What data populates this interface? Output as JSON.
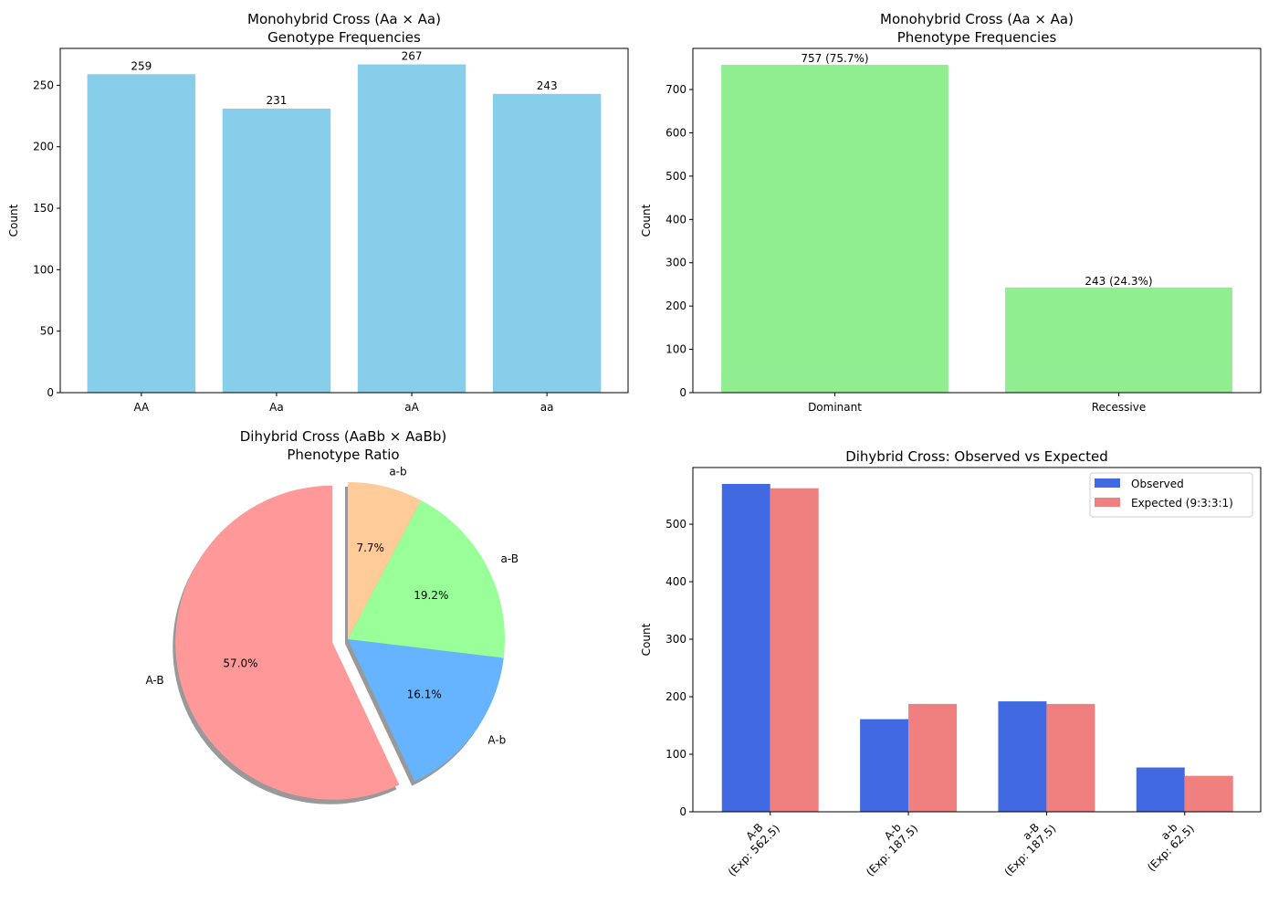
{
  "chart_data": [
    {
      "id": "genotype",
      "type": "bar",
      "title": [
        "Monohybrid Cross (Aa × Aa)",
        "Genotype Frequencies"
      ],
      "xlabel": "",
      "ylabel": "Count",
      "categories": [
        "AA",
        "Aa",
        "aA",
        "aa"
      ],
      "values": [
        259,
        231,
        267,
        243
      ],
      "data_labels": [
        "259",
        "231",
        "267",
        "243"
      ],
      "ylim": [
        0,
        280
      ],
      "yticks": [
        0,
        50,
        100,
        150,
        200,
        250
      ],
      "color": "#87CEEB",
      "grid": false
    },
    {
      "id": "phenotype",
      "type": "bar",
      "title": [
        "Monohybrid Cross (Aa × Aa)",
        "Phenotype Frequencies"
      ],
      "xlabel": "",
      "ylabel": "Count",
      "categories": [
        "Dominant",
        "Recessive"
      ],
      "values": [
        757,
        243
      ],
      "data_labels": [
        "757 (75.7%)",
        "243 (24.3%)"
      ],
      "ylim": [
        0,
        795
      ],
      "yticks": [
        0,
        100,
        200,
        300,
        400,
        500,
        600,
        700
      ],
      "color": "#90EE90",
      "grid": false
    },
    {
      "id": "dihybrid-pie",
      "type": "pie",
      "title": [
        "Dihybrid Cross (AaBb × AaBb)",
        "Phenotype Ratio"
      ],
      "labels": [
        "A-B",
        "A-b",
        "a-B",
        "a-b"
      ],
      "values": [
        570,
        161,
        192,
        77
      ],
      "percent_labels": [
        "57.0%",
        "16.1%",
        "19.2%",
        "7.7%"
      ],
      "colors": [
        "#FF9999",
        "#66B3FF",
        "#99FF99",
        "#FFCC99"
      ],
      "explode": [
        0.1,
        0,
        0,
        0
      ],
      "start_angle": 90,
      "shadow": true
    },
    {
      "id": "dihybrid-compare",
      "type": "bar",
      "title": [
        "Dihybrid Cross: Observed vs Expected"
      ],
      "xlabel": "",
      "ylabel": "Count",
      "categories": [
        "A-B\n(Exp: 562.5)",
        "A-b\n(Exp: 187.5)",
        "a-B\n(Exp: 187.5)",
        "a-b\n(Exp: 62.5)"
      ],
      "series": [
        {
          "name": "Observed",
          "values": [
            570,
            161,
            192,
            77
          ],
          "color": "#4169E1"
        },
        {
          "name": "Expected (9:3:3:1)",
          "values": [
            562.5,
            187.5,
            187.5,
            62.5
          ],
          "color": "#F08080"
        }
      ],
      "ylim": [
        0,
        598.5
      ],
      "yticks": [
        0,
        100,
        200,
        300,
        400,
        500
      ],
      "legend": "top-right",
      "grid": false
    }
  ]
}
